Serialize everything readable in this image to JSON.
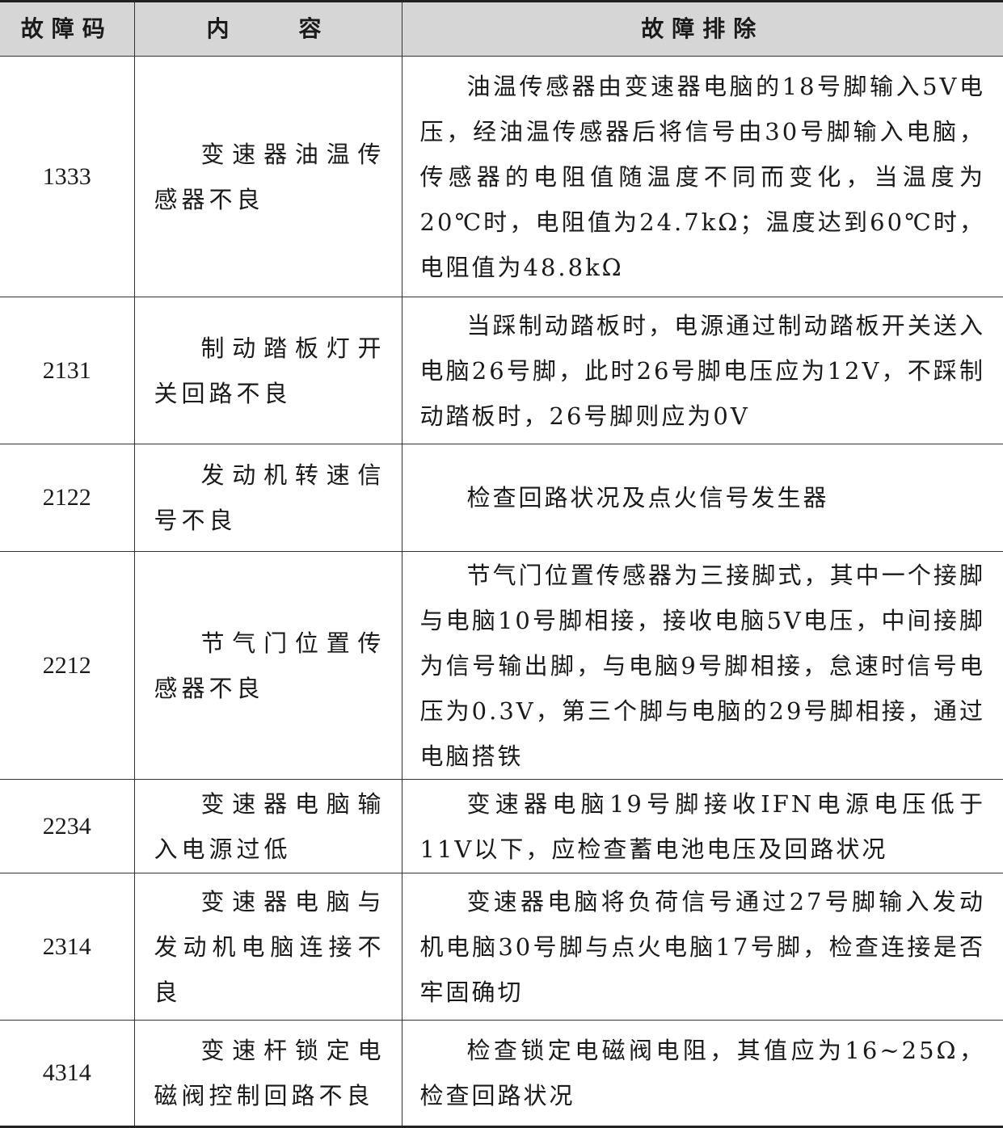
{
  "table": {
    "headers": [
      "故障码",
      "内　　容",
      "故障排除"
    ],
    "rows": [
      {
        "code": "1333",
        "content": "变速器油温传感器不良",
        "fix": "油温传感器由变速器电脑的18号脚输入5V电压，经油温传感器后将信号由30号脚输入电脑，传感器的电阻值随温度不同而变化，当温度为20℃时，电阻值为24.7kΩ；温度达到60℃时，电阻值为48.8kΩ"
      },
      {
        "code": "2131",
        "content": "制动踏板灯开关回路不良",
        "fix": "当踩制动踏板时，电源通过制动踏板开关送入电脑26号脚，此时26号脚电压应为12V，不踩制动踏板时，26号脚则应为0V"
      },
      {
        "code": "2122",
        "content": "发动机转速信号不良",
        "fix": "检查回路状况及点火信号发生器"
      },
      {
        "code": "2212",
        "content": "节气门位置传感器不良",
        "fix": "节气门位置传感器为三接脚式，其中一个接脚与电脑10号脚相接，接收电脑5V电压，中间接脚为信号输出脚，与电脑9号脚相接，怠速时信号电压为0.3V，第三个脚与电脑的29号脚相接，通过电脑搭铁"
      },
      {
        "code": "2234",
        "content": "变速器电脑输入电源过低",
        "fix": "变速器电脑19号脚接收IFN电源电压低于11V以下，应检查蓄电池电压及回路状况"
      },
      {
        "code": "2314",
        "content": "变速器电脑与发动机电脑连接不良",
        "fix": "变速器电脑将负荷信号通过27号脚输入发动机电脑30号脚与点火电脑17号脚，检查连接是否牢固确切"
      },
      {
        "code": "4314",
        "content": "变速杆锁定电磁阀控制回路不良",
        "fix": "检查锁定电磁阀电阻，其值应为16~25Ω，检查回路状况"
      }
    ]
  },
  "colors": {
    "header_bg": "#d6d6d6",
    "border": "#333333"
  }
}
